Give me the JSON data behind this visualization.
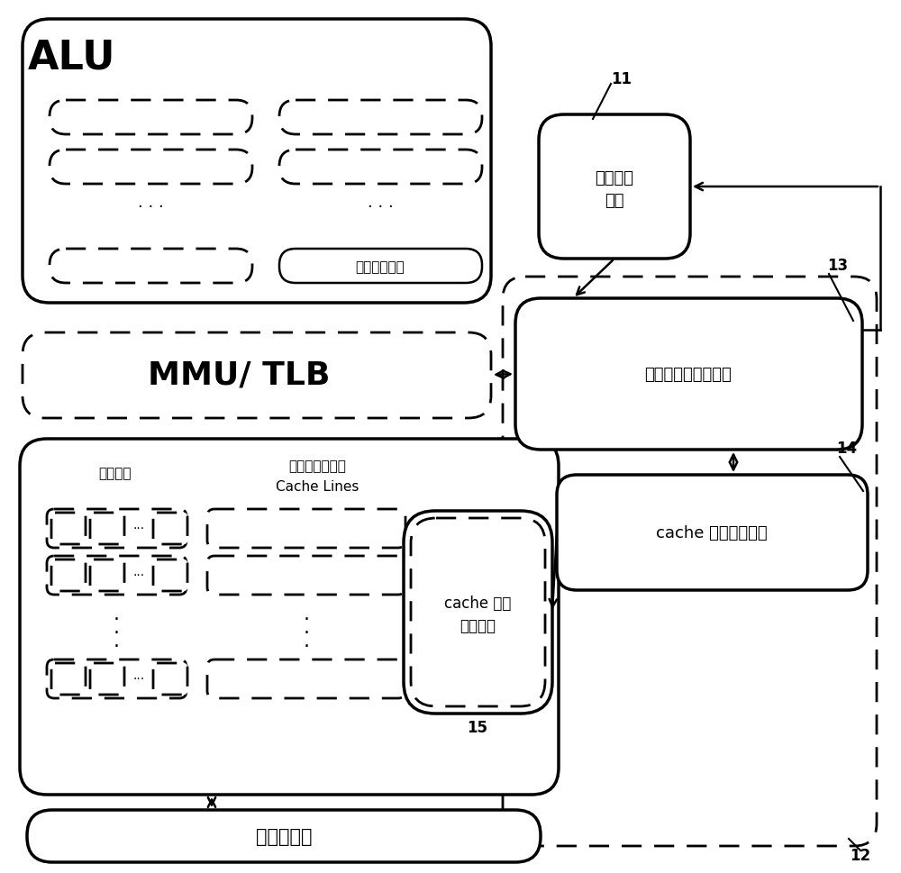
{
  "bg_color": "#ffffff",
  "line_color": "#000000",
  "labels": {
    "ALU": "ALU",
    "MMU": "MMU/ TLB",
    "stack_reg": "栈指针寄存器",
    "addr_detect_1": "地址检测",
    "addr_detect_2": "模块",
    "addr_op_gen": "地址和操作生成单元",
    "cache_instr_gen": "cache 指令生成单元",
    "cache_ctrl_1": "cache 操作",
    "cache_ctrl_2": "控制单元",
    "state_flags": "状态标识",
    "cache_lines_1": "高速缓存行单元",
    "cache_lines_2": "Cache Lines",
    "lower_mem": "下级存储器",
    "label_11": "11",
    "label_12": "12",
    "label_13": "13",
    "label_14": "14",
    "label_15": "15"
  }
}
